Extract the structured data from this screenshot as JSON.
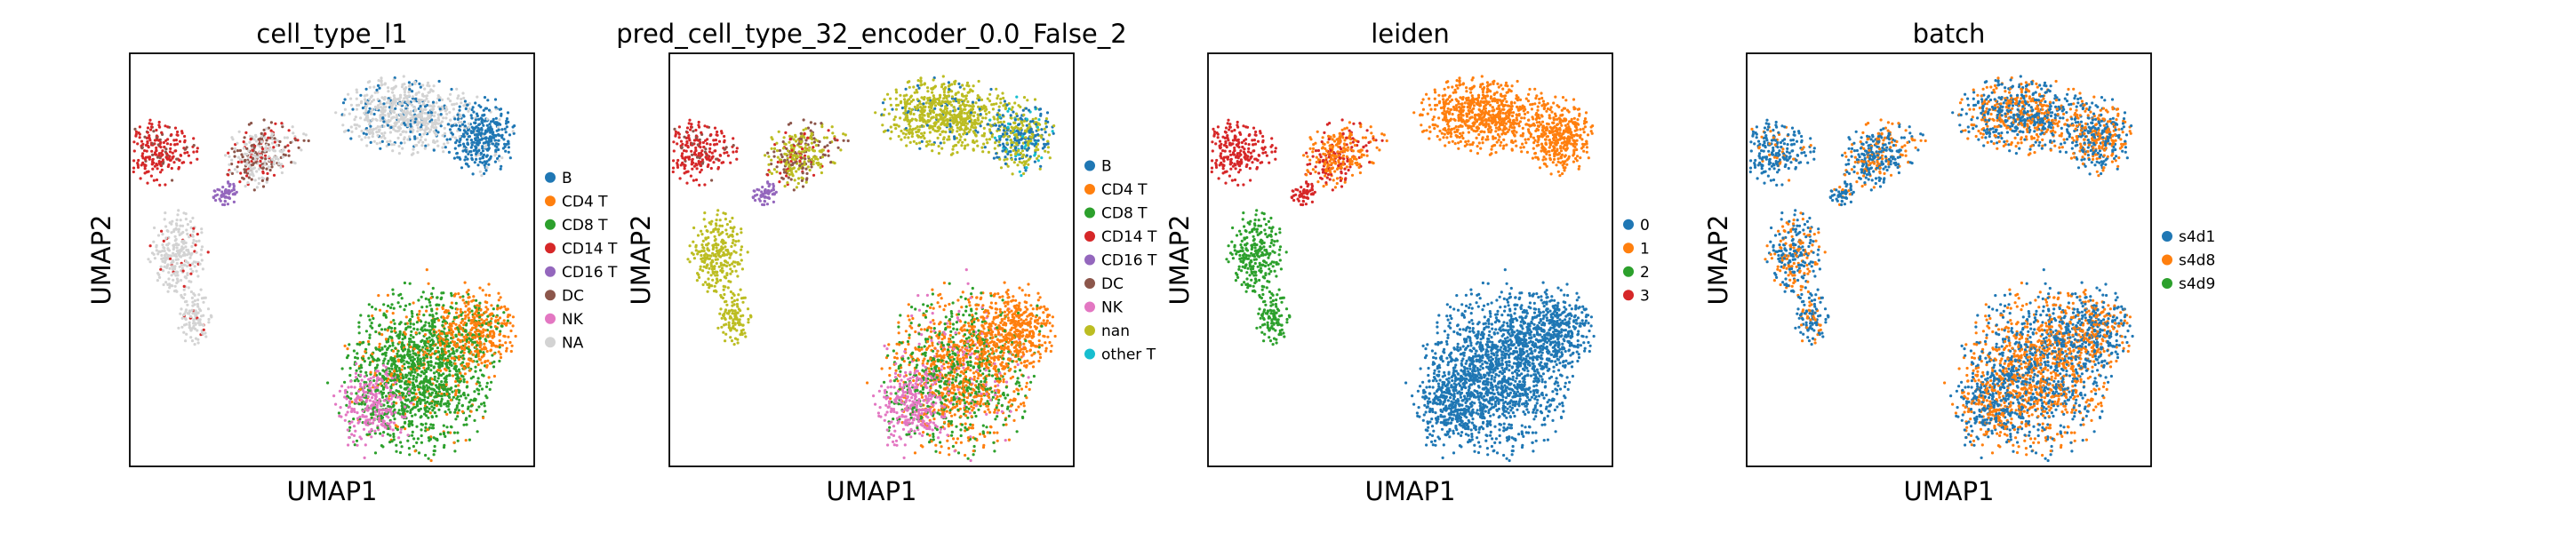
{
  "chart_data": [
    {
      "type": "scatter",
      "title": "cell_type_l1",
      "xlabel": "UMAP1",
      "ylabel": "UMAP2",
      "ticks": "none",
      "legend_position": "right",
      "legend": [
        {
          "name": "B",
          "color": "#1f77b4"
        },
        {
          "name": "CD4 T",
          "color": "#ff7f0e"
        },
        {
          "name": "CD8 T",
          "color": "#2ca02c"
        },
        {
          "name": "CD14 T",
          "color": "#d62728"
        },
        {
          "name": "CD16 T",
          "color": "#9467bd"
        },
        {
          "name": "DC",
          "color": "#8c564b"
        },
        {
          "name": "NK",
          "color": "#e377c2"
        },
        {
          "name": "NA",
          "color": "#d3d3d3"
        }
      ]
    },
    {
      "type": "scatter",
      "title": "pred_cell_type_32_encoder_0.0_False_2",
      "xlabel": "UMAP1",
      "ylabel": "UMAP2",
      "ticks": "none",
      "legend_position": "right",
      "legend": [
        {
          "name": "B",
          "color": "#1f77b4"
        },
        {
          "name": "CD4 T",
          "color": "#ff7f0e"
        },
        {
          "name": "CD8 T",
          "color": "#2ca02c"
        },
        {
          "name": "CD14 T",
          "color": "#d62728"
        },
        {
          "name": "CD16 T",
          "color": "#9467bd"
        },
        {
          "name": "DC",
          "color": "#8c564b"
        },
        {
          "name": "NK",
          "color": "#e377c2"
        },
        {
          "name": "nan",
          "color": "#bcbd22"
        },
        {
          "name": "other T",
          "color": "#17becf"
        }
      ]
    },
    {
      "type": "scatter",
      "title": "leiden",
      "xlabel": "UMAP1",
      "ylabel": "UMAP2",
      "ticks": "none",
      "legend_position": "right",
      "legend": [
        {
          "name": "0",
          "color": "#1f77b4"
        },
        {
          "name": "1",
          "color": "#ff7f0e"
        },
        {
          "name": "2",
          "color": "#2ca02c"
        },
        {
          "name": "3",
          "color": "#d62728"
        }
      ]
    },
    {
      "type": "scatter",
      "title": "batch",
      "xlabel": "UMAP1",
      "ylabel": "UMAP2",
      "ticks": "none",
      "legend_position": "right",
      "legend": [
        {
          "name": "s4d1",
          "color": "#1f77b4"
        },
        {
          "name": "s4d8",
          "color": "#ff7f0e"
        },
        {
          "name": "s4d9",
          "color": "#2ca02c"
        }
      ]
    }
  ]
}
